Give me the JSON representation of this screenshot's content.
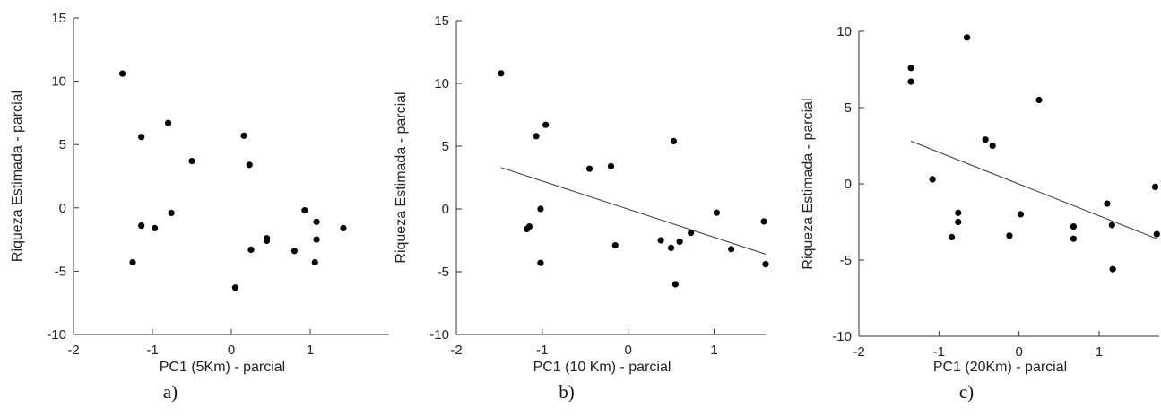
{
  "chart_data": [
    {
      "type": "scatter",
      "panel_label": "a)",
      "xlabel": "PC1 (5Km) - parcial",
      "ylabel": "Riqueza Estimada - parcial",
      "xlim": [
        -2,
        2
      ],
      "ylim": [
        -10,
        15
      ],
      "xticks": [
        "-2",
        "-1",
        "0",
        "1"
      ],
      "yticks": [
        "-10",
        "-5",
        "0",
        "5",
        "10",
        "15"
      ],
      "grid": false,
      "points": [
        [
          -1.38,
          10.6
        ],
        [
          -1.14,
          5.6
        ],
        [
          -0.8,
          6.7
        ],
        [
          -0.5,
          3.7
        ],
        [
          -1.14,
          -1.4
        ],
        [
          -0.97,
          -1.6
        ],
        [
          -0.76,
          -0.4
        ],
        [
          -1.25,
          -4.3
        ],
        [
          0.16,
          5.7
        ],
        [
          0.23,
          3.4
        ],
        [
          0.05,
          -6.3
        ],
        [
          0.25,
          -3.3
        ],
        [
          0.45,
          -2.4
        ],
        [
          0.45,
          -2.6
        ],
        [
          0.8,
          -3.4
        ],
        [
          0.93,
          -0.2
        ],
        [
          1.08,
          -1.1
        ],
        [
          1.08,
          -2.5
        ],
        [
          1.06,
          -4.3
        ],
        [
          1.42,
          -1.6
        ]
      ]
    },
    {
      "type": "scatter",
      "panel_label": "b)",
      "xlabel": "PC1 (10 Km) - parcial",
      "ylabel": "Riqueza Estimada - parcial",
      "xlim": [
        -2,
        1.6
      ],
      "ylim": [
        -10,
        15
      ],
      "xticks": [
        "-2",
        "-1",
        "0",
        "1"
      ],
      "yticks": [
        "-10",
        "-5",
        "0",
        "5",
        "10",
        "15"
      ],
      "grid": false,
      "fit_line": [
        [
          -1.48,
          3.3
        ],
        [
          1.6,
          -3.6
        ]
      ],
      "points": [
        [
          -1.48,
          10.8
        ],
        [
          -0.96,
          6.7
        ],
        [
          -1.07,
          5.8
        ],
        [
          -0.45,
          3.2
        ],
        [
          -0.2,
          3.4
        ],
        [
          -1.02,
          0.0
        ],
        [
          -1.18,
          -1.6
        ],
        [
          -1.15,
          -1.4
        ],
        [
          -1.02,
          -4.3
        ],
        [
          -0.15,
          -2.9
        ],
        [
          0.38,
          -2.5
        ],
        [
          0.5,
          -3.1
        ],
        [
          0.6,
          -2.6
        ],
        [
          0.55,
          -6.0
        ],
        [
          0.53,
          5.4
        ],
        [
          0.73,
          -1.9
        ],
        [
          1.03,
          -0.3
        ],
        [
          1.2,
          -3.2
        ],
        [
          1.58,
          -1.0
        ],
        [
          1.6,
          -4.4
        ]
      ]
    },
    {
      "type": "scatter",
      "panel_label": "c)",
      "xlabel": "PC1 (20Km) - parcial",
      "ylabel": "Riqueza Estimada - parcial",
      "xlim": [
        -2,
        1.75
      ],
      "ylim": [
        -10,
        10
      ],
      "xticks": [
        "-2",
        "-1",
        "0",
        "1"
      ],
      "yticks": [
        "-10",
        "-5",
        "0",
        "5",
        "10"
      ],
      "grid": false,
      "fit_line": [
        [
          -1.35,
          2.8
        ],
        [
          1.72,
          -3.6
        ]
      ],
      "points": [
        [
          -1.35,
          7.6
        ],
        [
          -1.35,
          6.7
        ],
        [
          -0.65,
          9.6
        ],
        [
          0.25,
          5.5
        ],
        [
          -0.42,
          2.9
        ],
        [
          -0.33,
          2.5
        ],
        [
          -1.08,
          0.3
        ],
        [
          -0.76,
          -1.9
        ],
        [
          -0.76,
          -2.5
        ],
        [
          -0.84,
          -3.5
        ],
        [
          -0.12,
          -3.4
        ],
        [
          0.02,
          -2.0
        ],
        [
          0.68,
          -2.8
        ],
        [
          0.68,
          -3.6
        ],
        [
          1.1,
          -1.3
        ],
        [
          1.16,
          -2.7
        ],
        [
          1.17,
          -5.6
        ],
        [
          1.7,
          -0.2
        ],
        [
          1.72,
          -3.3
        ]
      ]
    }
  ]
}
